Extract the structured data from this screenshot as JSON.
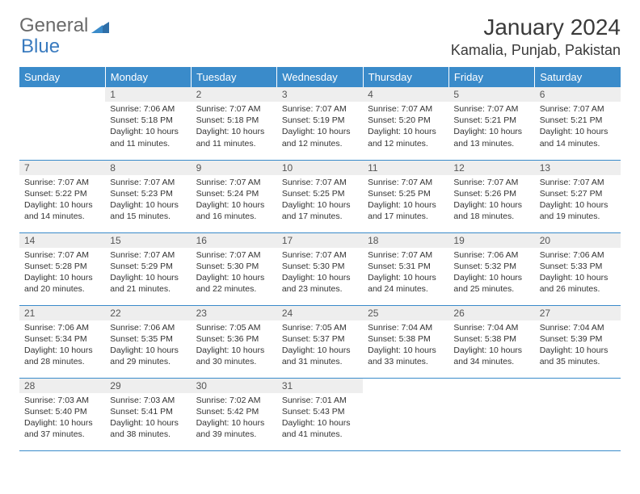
{
  "logo": {
    "text1": "General",
    "text2": "Blue"
  },
  "title": "January 2024",
  "location": "Kamalia, Punjab, Pakistan",
  "colors": {
    "header_bg": "#3a8bca",
    "header_text": "#ffffff",
    "daynum_bg": "#eeeeee",
    "border": "#3a8bca",
    "logo_blue": "#3a7bbf",
    "logo_gray": "#6a6a6a"
  },
  "weekdays": [
    "Sunday",
    "Monday",
    "Tuesday",
    "Wednesday",
    "Thursday",
    "Friday",
    "Saturday"
  ],
  "weeks": [
    [
      {
        "n": "",
        "sr": "",
        "ss": "",
        "dl": ""
      },
      {
        "n": "1",
        "sr": "Sunrise: 7:06 AM",
        "ss": "Sunset: 5:18 PM",
        "dl": "Daylight: 10 hours and 11 minutes."
      },
      {
        "n": "2",
        "sr": "Sunrise: 7:07 AM",
        "ss": "Sunset: 5:18 PM",
        "dl": "Daylight: 10 hours and 11 minutes."
      },
      {
        "n": "3",
        "sr": "Sunrise: 7:07 AM",
        "ss": "Sunset: 5:19 PM",
        "dl": "Daylight: 10 hours and 12 minutes."
      },
      {
        "n": "4",
        "sr": "Sunrise: 7:07 AM",
        "ss": "Sunset: 5:20 PM",
        "dl": "Daylight: 10 hours and 12 minutes."
      },
      {
        "n": "5",
        "sr": "Sunrise: 7:07 AM",
        "ss": "Sunset: 5:21 PM",
        "dl": "Daylight: 10 hours and 13 minutes."
      },
      {
        "n": "6",
        "sr": "Sunrise: 7:07 AM",
        "ss": "Sunset: 5:21 PM",
        "dl": "Daylight: 10 hours and 14 minutes."
      }
    ],
    [
      {
        "n": "7",
        "sr": "Sunrise: 7:07 AM",
        "ss": "Sunset: 5:22 PM",
        "dl": "Daylight: 10 hours and 14 minutes."
      },
      {
        "n": "8",
        "sr": "Sunrise: 7:07 AM",
        "ss": "Sunset: 5:23 PM",
        "dl": "Daylight: 10 hours and 15 minutes."
      },
      {
        "n": "9",
        "sr": "Sunrise: 7:07 AM",
        "ss": "Sunset: 5:24 PM",
        "dl": "Daylight: 10 hours and 16 minutes."
      },
      {
        "n": "10",
        "sr": "Sunrise: 7:07 AM",
        "ss": "Sunset: 5:25 PM",
        "dl": "Daylight: 10 hours and 17 minutes."
      },
      {
        "n": "11",
        "sr": "Sunrise: 7:07 AM",
        "ss": "Sunset: 5:25 PM",
        "dl": "Daylight: 10 hours and 17 minutes."
      },
      {
        "n": "12",
        "sr": "Sunrise: 7:07 AM",
        "ss": "Sunset: 5:26 PM",
        "dl": "Daylight: 10 hours and 18 minutes."
      },
      {
        "n": "13",
        "sr": "Sunrise: 7:07 AM",
        "ss": "Sunset: 5:27 PM",
        "dl": "Daylight: 10 hours and 19 minutes."
      }
    ],
    [
      {
        "n": "14",
        "sr": "Sunrise: 7:07 AM",
        "ss": "Sunset: 5:28 PM",
        "dl": "Daylight: 10 hours and 20 minutes."
      },
      {
        "n": "15",
        "sr": "Sunrise: 7:07 AM",
        "ss": "Sunset: 5:29 PM",
        "dl": "Daylight: 10 hours and 21 minutes."
      },
      {
        "n": "16",
        "sr": "Sunrise: 7:07 AM",
        "ss": "Sunset: 5:30 PM",
        "dl": "Daylight: 10 hours and 22 minutes."
      },
      {
        "n": "17",
        "sr": "Sunrise: 7:07 AM",
        "ss": "Sunset: 5:30 PM",
        "dl": "Daylight: 10 hours and 23 minutes."
      },
      {
        "n": "18",
        "sr": "Sunrise: 7:07 AM",
        "ss": "Sunset: 5:31 PM",
        "dl": "Daylight: 10 hours and 24 minutes."
      },
      {
        "n": "19",
        "sr": "Sunrise: 7:06 AM",
        "ss": "Sunset: 5:32 PM",
        "dl": "Daylight: 10 hours and 25 minutes."
      },
      {
        "n": "20",
        "sr": "Sunrise: 7:06 AM",
        "ss": "Sunset: 5:33 PM",
        "dl": "Daylight: 10 hours and 26 minutes."
      }
    ],
    [
      {
        "n": "21",
        "sr": "Sunrise: 7:06 AM",
        "ss": "Sunset: 5:34 PM",
        "dl": "Daylight: 10 hours and 28 minutes."
      },
      {
        "n": "22",
        "sr": "Sunrise: 7:06 AM",
        "ss": "Sunset: 5:35 PM",
        "dl": "Daylight: 10 hours and 29 minutes."
      },
      {
        "n": "23",
        "sr": "Sunrise: 7:05 AM",
        "ss": "Sunset: 5:36 PM",
        "dl": "Daylight: 10 hours and 30 minutes."
      },
      {
        "n": "24",
        "sr": "Sunrise: 7:05 AM",
        "ss": "Sunset: 5:37 PM",
        "dl": "Daylight: 10 hours and 31 minutes."
      },
      {
        "n": "25",
        "sr": "Sunrise: 7:04 AM",
        "ss": "Sunset: 5:38 PM",
        "dl": "Daylight: 10 hours and 33 minutes."
      },
      {
        "n": "26",
        "sr": "Sunrise: 7:04 AM",
        "ss": "Sunset: 5:38 PM",
        "dl": "Daylight: 10 hours and 34 minutes."
      },
      {
        "n": "27",
        "sr": "Sunrise: 7:04 AM",
        "ss": "Sunset: 5:39 PM",
        "dl": "Daylight: 10 hours and 35 minutes."
      }
    ],
    [
      {
        "n": "28",
        "sr": "Sunrise: 7:03 AM",
        "ss": "Sunset: 5:40 PM",
        "dl": "Daylight: 10 hours and 37 minutes."
      },
      {
        "n": "29",
        "sr": "Sunrise: 7:03 AM",
        "ss": "Sunset: 5:41 PM",
        "dl": "Daylight: 10 hours and 38 minutes."
      },
      {
        "n": "30",
        "sr": "Sunrise: 7:02 AM",
        "ss": "Sunset: 5:42 PM",
        "dl": "Daylight: 10 hours and 39 minutes."
      },
      {
        "n": "31",
        "sr": "Sunrise: 7:01 AM",
        "ss": "Sunset: 5:43 PM",
        "dl": "Daylight: 10 hours and 41 minutes."
      },
      {
        "n": "",
        "sr": "",
        "ss": "",
        "dl": ""
      },
      {
        "n": "",
        "sr": "",
        "ss": "",
        "dl": ""
      },
      {
        "n": "",
        "sr": "",
        "ss": "",
        "dl": ""
      }
    ]
  ]
}
